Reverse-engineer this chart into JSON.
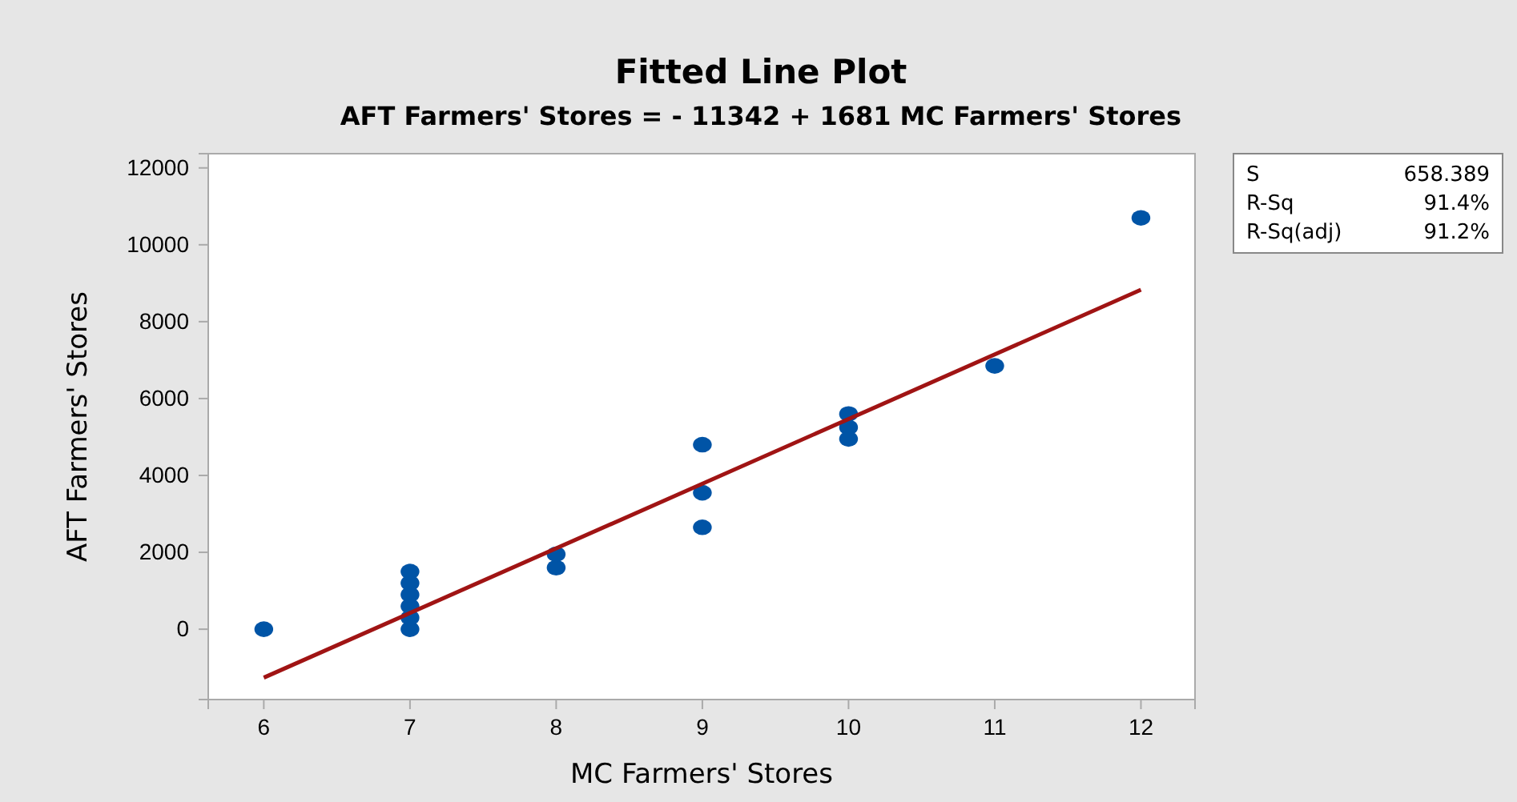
{
  "chart_data": {
    "type": "scatter",
    "title": "Fitted Line Plot",
    "subtitle": "AFT Farmers' Stores = - 11342 + 1681 MC Farmers' Stores",
    "xlabel": "MC Farmers' Stores",
    "ylabel": "AFT Farmers' Stores",
    "xlim": [
      5.62,
      12.37
    ],
    "xticks": [
      6,
      7,
      8,
      9,
      10,
      11,
      12
    ],
    "ylim": [
      -1830,
      12370
    ],
    "yticks": [
      0,
      2000,
      4000,
      6000,
      8000,
      10000,
      12000
    ],
    "grid": false,
    "series": [
      {
        "color": "#0054a6",
        "marker": "circle",
        "x": [
          6,
          7,
          7,
          7,
          7,
          7,
          7,
          8,
          8,
          9,
          9,
          9,
          10,
          10,
          10,
          11,
          12
        ],
        "values": [
          0,
          0,
          300,
          600,
          900,
          1200,
          1500,
          1600,
          1950,
          4800,
          3550,
          2650,
          5600,
          5250,
          4950,
          6850,
          10700
        ]
      },
      {
        "type": "line",
        "color": "#a01414",
        "line_style": "solid",
        "x": [
          6,
          12
        ],
        "values": [
          -1260,
          8830
        ]
      }
    ],
    "annotations": [
      "S",
      "658.389",
      "R-Sq",
      "91.4%",
      "R-Sq(adj)",
      "91.2%"
    ]
  }
}
